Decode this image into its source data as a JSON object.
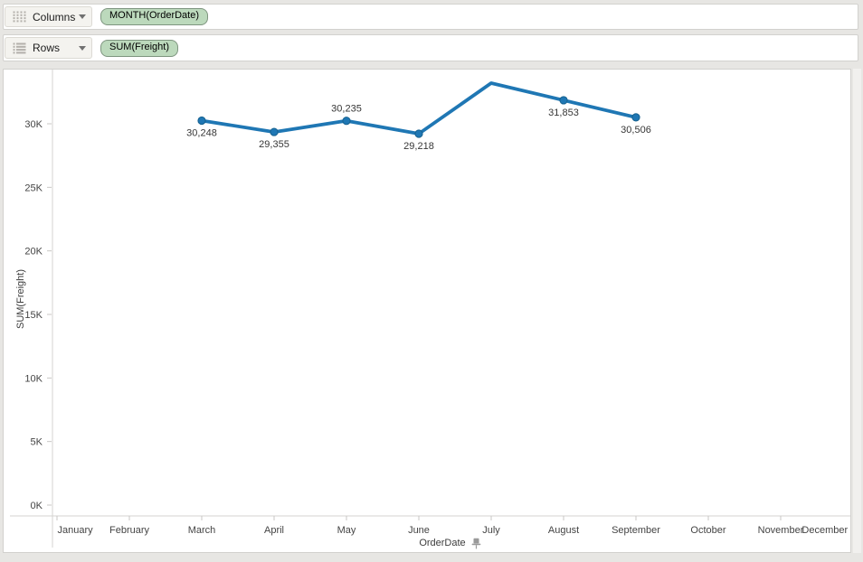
{
  "colors": {
    "pill_green": "#bcd9bc",
    "pill_border": "#7e957f",
    "line_blue": "#1f77b4",
    "marker_stroke": "#16618f",
    "axis_text": "#444444",
    "axis_line": "#d4d3d0"
  },
  "icons": {
    "columns_shelf": "grid-columns-icon",
    "rows_shelf": "grid-rows-icon",
    "shelf_dropdown": "chevron-down-icon",
    "x_axis": "pin-icon"
  },
  "shelves": {
    "columns": {
      "label": "Columns",
      "pill": "MONTH(OrderDate)"
    },
    "rows": {
      "label": "Rows",
      "pill": "SUM(Freight)"
    }
  },
  "chart_data": {
    "type": "line",
    "title": "",
    "grid": "off",
    "legend": "none",
    "x_axis": {
      "title": "OrderDate",
      "pinned": true,
      "categories": [
        "January",
        "February",
        "March",
        "April",
        "May",
        "June",
        "July",
        "August",
        "September",
        "October",
        "November",
        "December"
      ]
    },
    "y_axis": {
      "title": "SUM(Freight)",
      "tick_labels": [
        "0K",
        "5K",
        "10K",
        "15K",
        "20K",
        "25K",
        "30K"
      ],
      "tick_values": [
        0,
        5000,
        10000,
        15000,
        20000,
        25000,
        30000
      ],
      "ylim": [
        0,
        34300
      ]
    },
    "series": [
      {
        "name": "SUM(Freight)",
        "points": [
          {
            "month": "March",
            "value": 30248,
            "label": "30,248",
            "label_pos": "below",
            "marker": true
          },
          {
            "month": "April",
            "value": 29355,
            "label": "29,355",
            "label_pos": "below",
            "marker": true
          },
          {
            "month": "May",
            "value": 30235,
            "label": "30,235",
            "label_pos": "above",
            "marker": true
          },
          {
            "month": "June",
            "value": 29218,
            "label": "29,218",
            "label_pos": "below",
            "marker": true
          },
          {
            "month": "July",
            "value": 33200,
            "label": "",
            "label_pos": "none",
            "marker": false,
            "value_estimated": true
          },
          {
            "month": "August",
            "value": 31853,
            "label": "31,853",
            "label_pos": "below",
            "marker": true
          },
          {
            "month": "September",
            "value": 30506,
            "label": "30,506",
            "label_pos": "below",
            "marker": true
          }
        ]
      }
    ]
  }
}
